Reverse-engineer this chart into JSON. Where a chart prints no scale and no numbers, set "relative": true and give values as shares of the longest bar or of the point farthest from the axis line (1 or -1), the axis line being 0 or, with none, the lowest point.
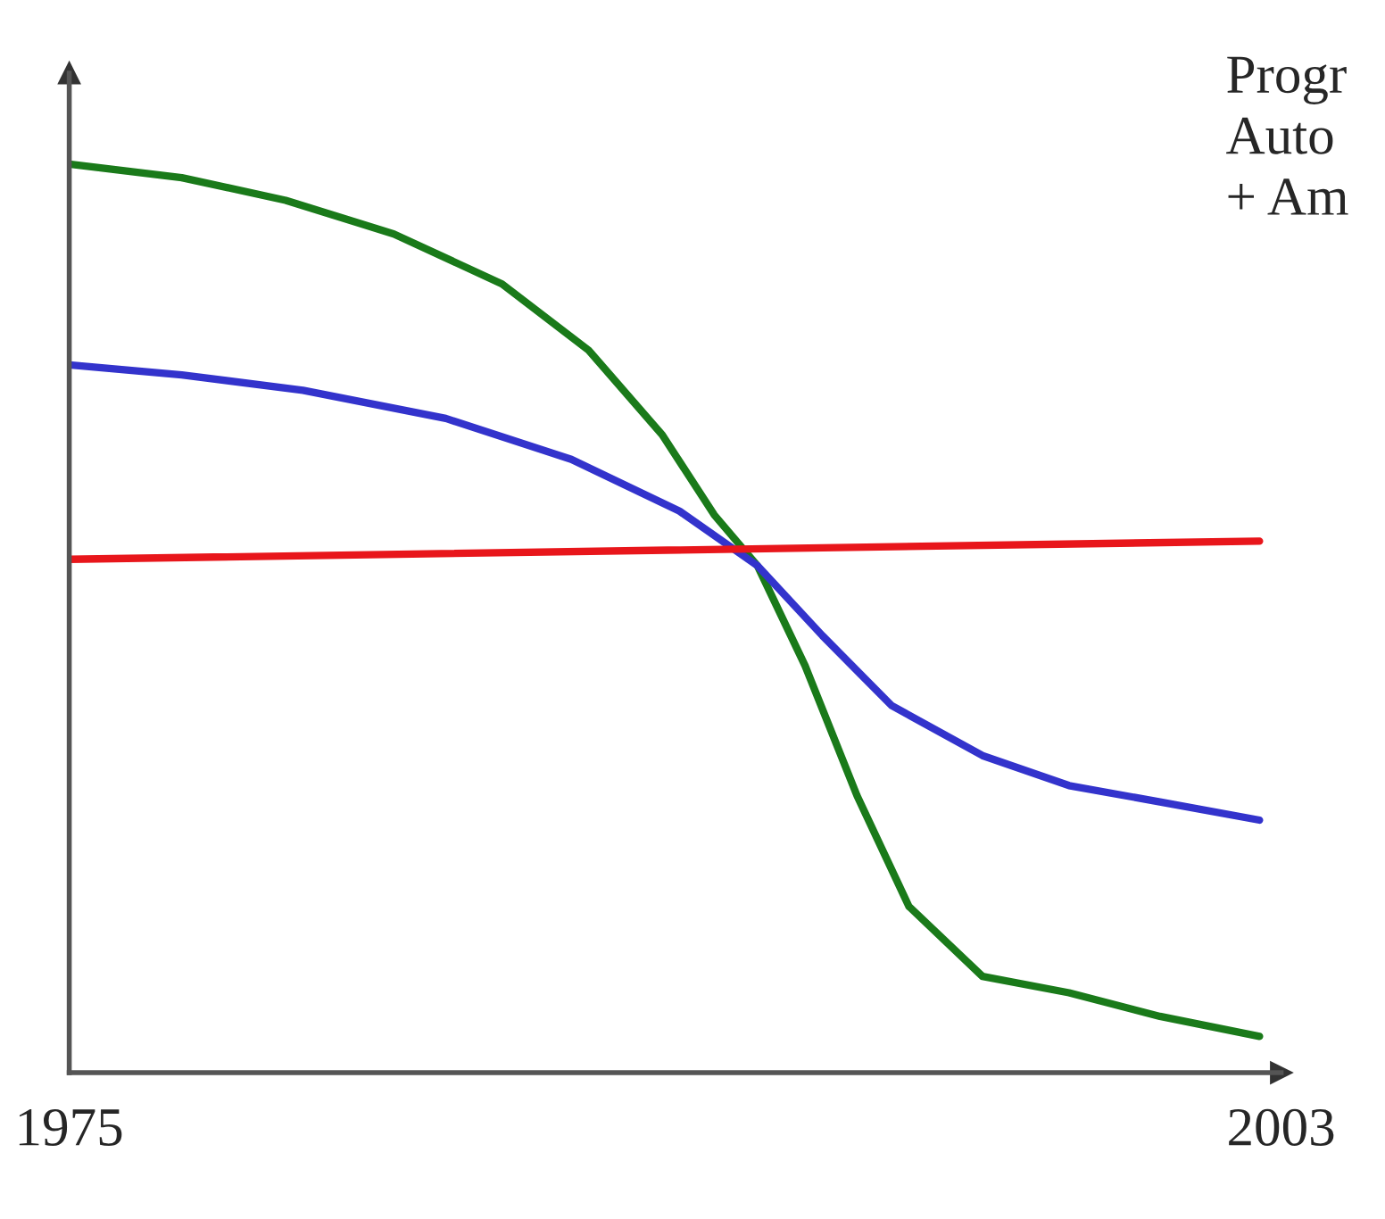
{
  "chart_data": {
    "type": "line",
    "relative": true,
    "xlim": [
      1975,
      2003
    ],
    "xticks": [
      1975,
      2003
    ],
    "annotations": [
      "Progr",
      "Auto",
      "+ Am"
    ],
    "series": [
      {
        "color": "#1a7a1a",
        "x": [
          1975.0,
          1977.6,
          1980.0,
          1982.5,
          1985.0,
          1987.0,
          1988.7,
          1989.9,
          1990.9,
          1992.0,
          1993.2,
          1994.4,
          1996.1,
          1998.1,
          2000.2,
          2002.5
        ],
        "values": [
          1.0,
          0.985,
          0.96,
          0.923,
          0.868,
          0.795,
          0.702,
          0.614,
          0.558,
          0.448,
          0.305,
          0.183,
          0.106,
          0.088,
          0.062,
          0.04
        ]
      },
      {
        "color": "#3333cc",
        "x": [
          1975.0,
          1977.6,
          1980.4,
          1983.7,
          1986.6,
          1989.1,
          1990.9,
          1992.4,
          1994.0,
          1996.1,
          1998.1,
          2000.2,
          2002.5
        ],
        "values": [
          0.779,
          0.768,
          0.751,
          0.72,
          0.675,
          0.618,
          0.558,
          0.481,
          0.404,
          0.349,
          0.316,
          0.298,
          0.278
        ]
      },
      {
        "color": "#e8161b",
        "x": [
          1975.0,
          2002.5
        ],
        "values": [
          0.565,
          0.585
        ]
      }
    ]
  }
}
